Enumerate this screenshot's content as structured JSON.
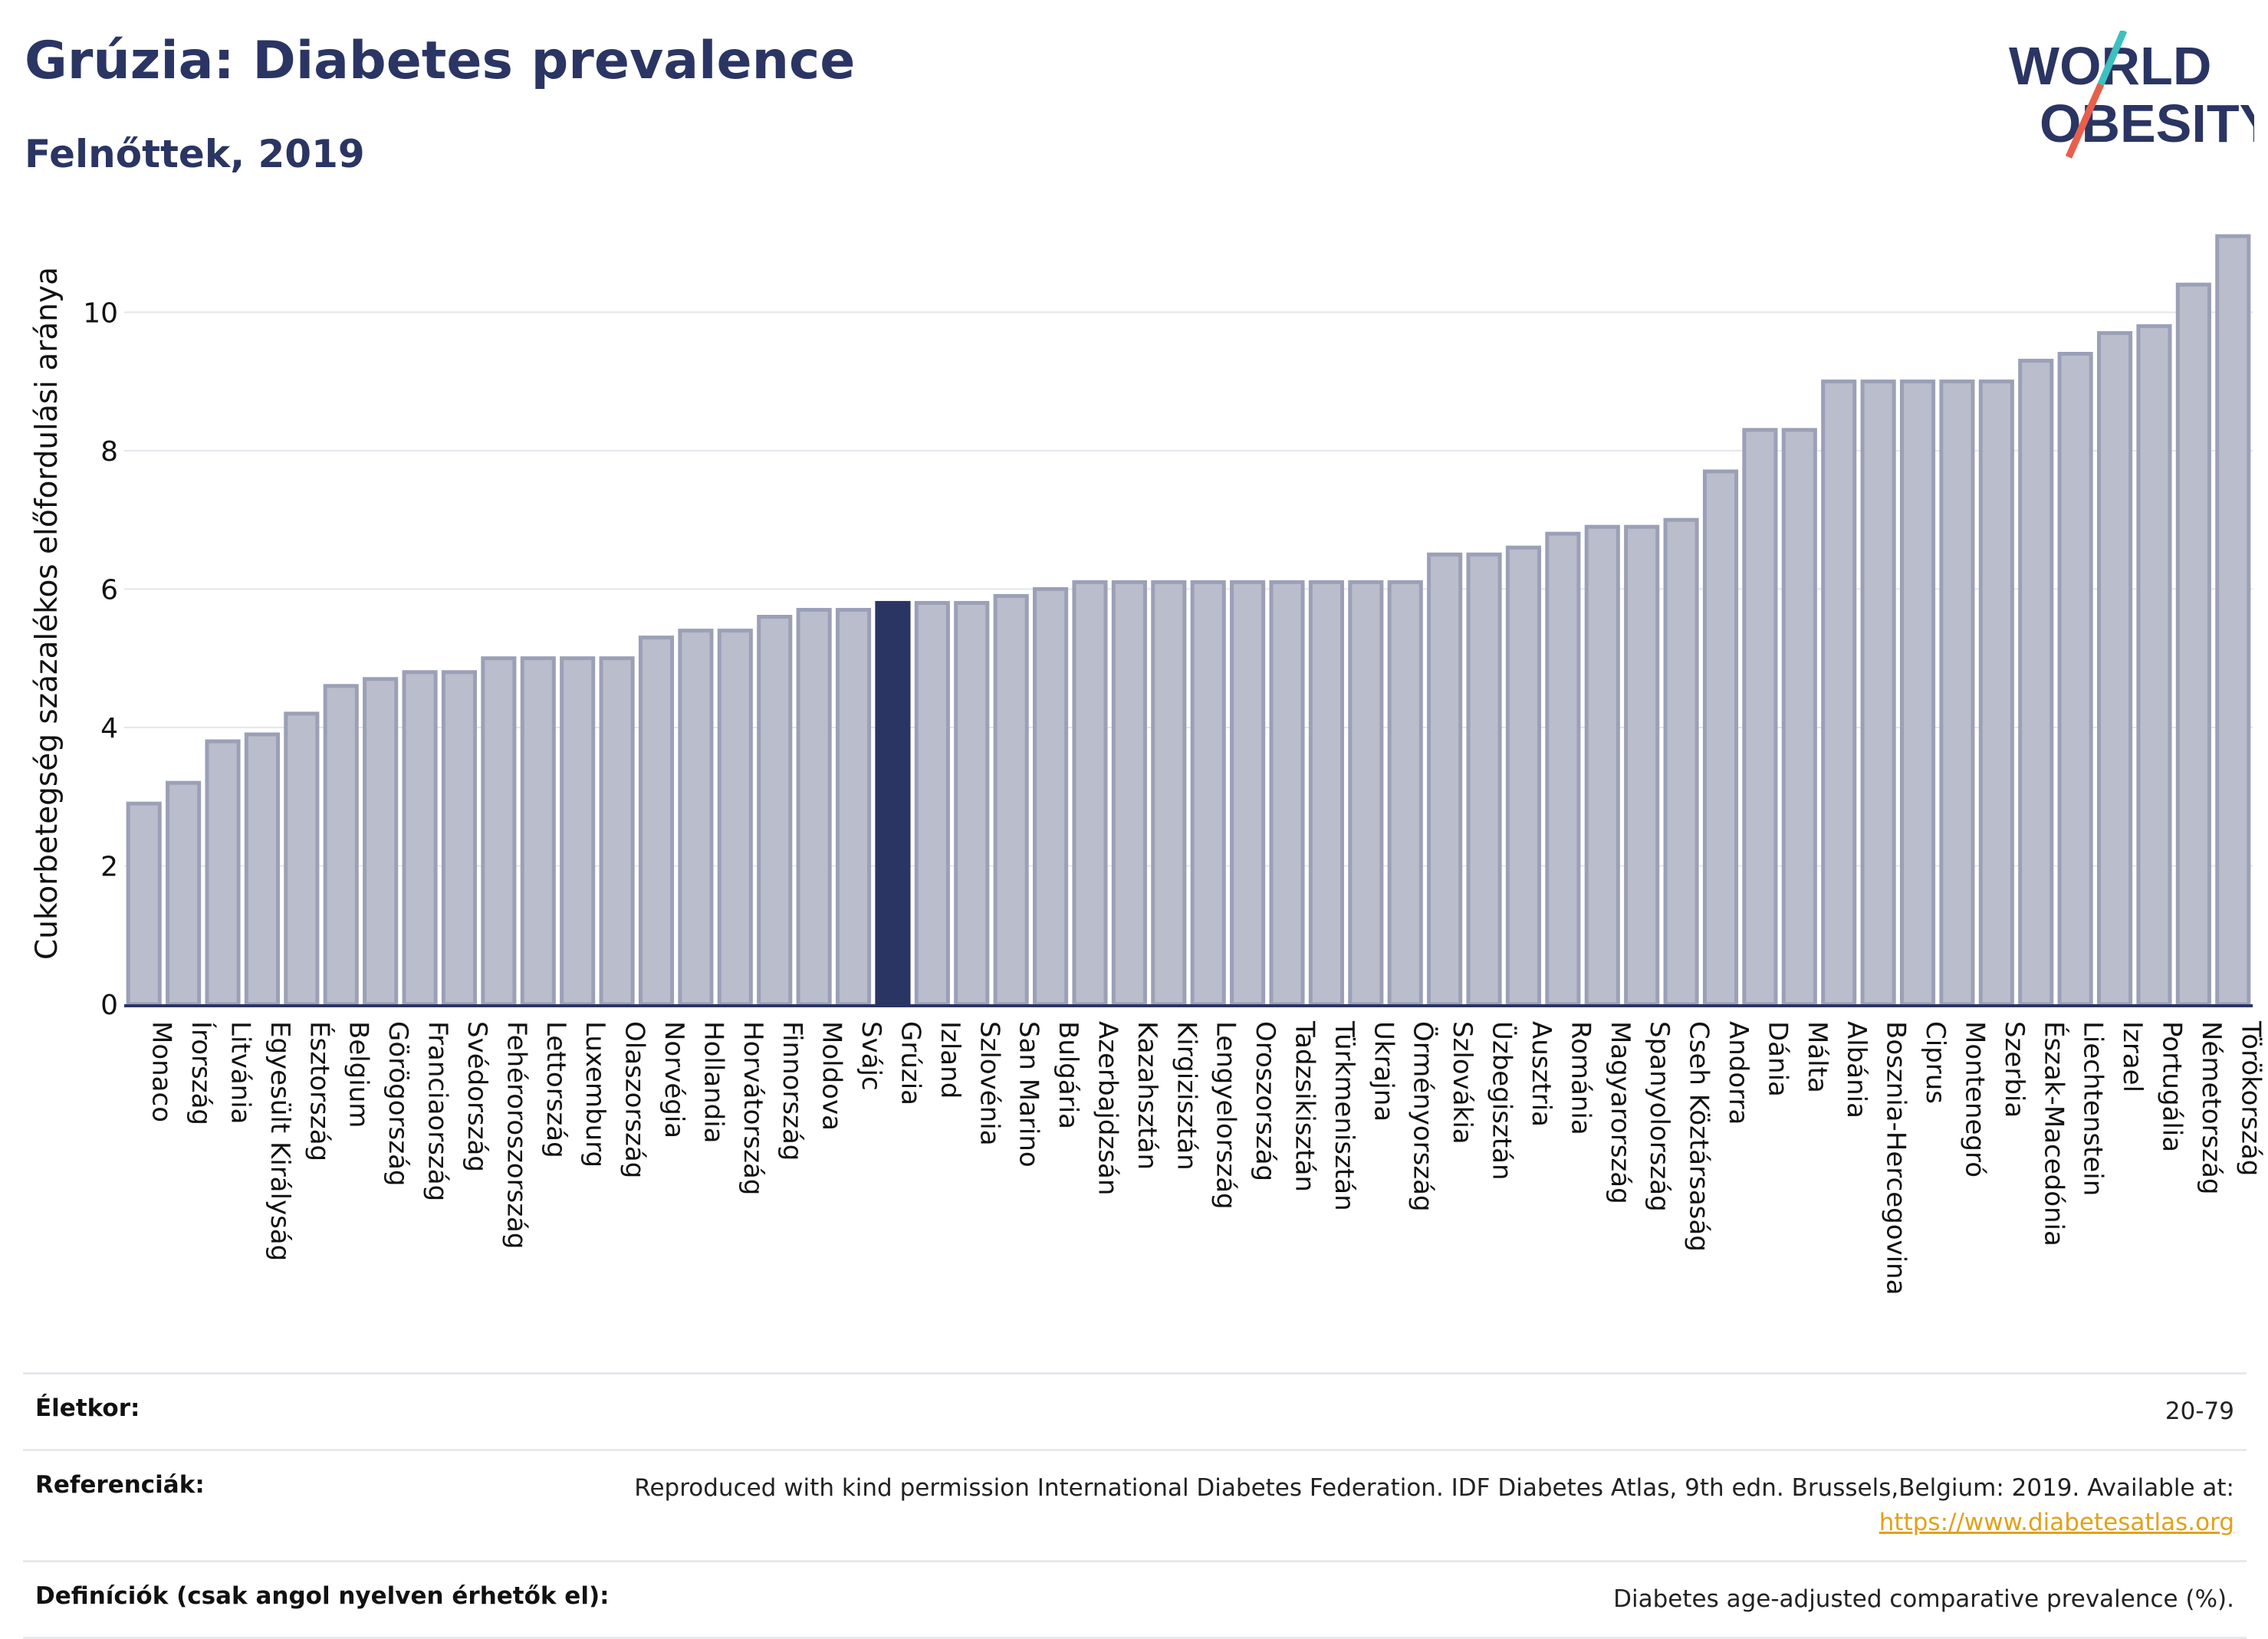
{
  "header": {
    "title": "Grúzia: Diabetes prevalence",
    "subtitle": "Felnőttek, 2019"
  },
  "logo": {
    "line1": "WORLD",
    "line2": "OBESITY",
    "colors": {
      "text": "#2a3563",
      "slash_top": "#3cc0c0",
      "slash_bottom": "#e8604c"
    }
  },
  "colors": {
    "bar": "#b9bdcc",
    "bar_stroke": "#9ba0b7",
    "highlight": "#2a3563",
    "grid": "#e4e6ec"
  },
  "chart_data": {
    "type": "bar",
    "title": "Grúzia: Diabetes prevalence",
    "subtitle": "Felnőttek, 2019",
    "ylabel": "Cukorbetegség százalékos előfordulási aránya",
    "xlabel": "",
    "ylim": [
      0,
      11.3
    ],
    "yticks": [
      0,
      2,
      4,
      6,
      8,
      10
    ],
    "grid": true,
    "highlight": "Grúzia",
    "categories": [
      "Monaco",
      "Írország",
      "Litvánia",
      "Egyesült Királyság",
      "Észtország",
      "Belgium",
      "Görögország",
      "Franciaország",
      "Svédország",
      "Fehéroroszország",
      "Lettország",
      "Luxemburg",
      "Olaszország",
      "Norvégia",
      "Hollandia",
      "Horvátország",
      "Finnország",
      "Moldova",
      "Svájc",
      "Grúzia",
      "Izland",
      "Szlovénia",
      "San Marino",
      "Bulgária",
      "Azerbajdzsán",
      "Kazahsztán",
      "Kirgizisztán",
      "Lengyelország",
      "Oroszország",
      "Tadzsikisztán",
      "Türkmenisztán",
      "Ukrajna",
      "Örményország",
      "Szlovákia",
      "Üzbegisztán",
      "Ausztria",
      "Románia",
      "Magyarország",
      "Spanyolország",
      "Cseh Köztársaság",
      "Andorra",
      "Dánia",
      "Málta",
      "Albánia",
      "Bosznia-Hercegovina",
      "Ciprus",
      "Montenegró",
      "Szerbia",
      "Észak-Macedónia",
      "Liechtenstein",
      "Izrael",
      "Portugália",
      "Németország",
      "Törökország"
    ],
    "values": [
      2.9,
      3.2,
      3.8,
      3.9,
      4.2,
      4.6,
      4.7,
      4.8,
      4.8,
      5.0,
      5.0,
      5.0,
      5.0,
      5.3,
      5.4,
      5.4,
      5.6,
      5.7,
      5.7,
      5.8,
      5.8,
      5.8,
      5.9,
      6.0,
      6.1,
      6.1,
      6.1,
      6.1,
      6.1,
      6.1,
      6.1,
      6.1,
      6.1,
      6.5,
      6.5,
      6.6,
      6.8,
      6.9,
      6.9,
      7.0,
      7.7,
      8.3,
      8.3,
      9.0,
      9.0,
      9.0,
      9.0,
      9.0,
      9.3,
      9.4,
      9.7,
      9.8,
      10.4,
      11.1
    ]
  },
  "info": {
    "age_label": "Életkor:",
    "age_value": "20-79",
    "ref_label": "Referenciák:",
    "ref_value": "Reproduced with kind permission International Diabetes Federation. IDF Diabetes Atlas, 9th edn. Brussels,Belgium: 2019. Available at:",
    "ref_link": "https://www.diabetesatlas.org",
    "def_label": "Definíciók (csak angol nyelven érhetők el):",
    "def_value": "Diabetes age-adjusted comparative prevalence (%)."
  }
}
